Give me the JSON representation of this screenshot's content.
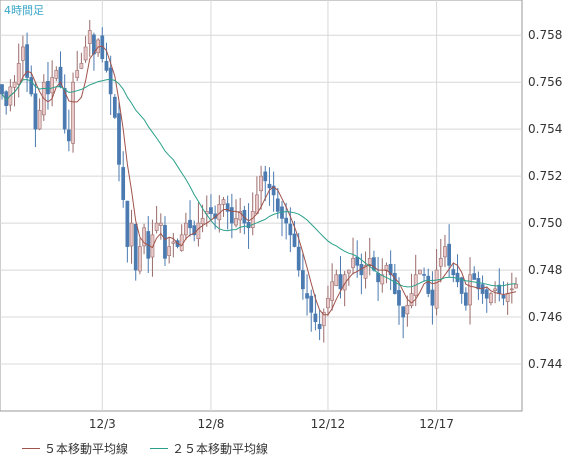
{
  "chart_data": {
    "type": "candlestick",
    "title": "4時間足",
    "ylim": [
      0.742,
      0.7595
    ],
    "y_ticks": [
      "0.758",
      "0.756",
      "0.754",
      "0.752",
      "0.750",
      "0.748",
      "0.746",
      "0.744"
    ],
    "y_tick_values": [
      0.758,
      0.756,
      0.754,
      0.752,
      0.75,
      0.748,
      0.746,
      0.744
    ],
    "x_ticks": [
      {
        "label": "12/3",
        "index": 24
      },
      {
        "label": "12/8",
        "index": 50
      },
      {
        "label": "12/12",
        "index": 78
      },
      {
        "label": "12/17",
        "index": 104
      }
    ],
    "up_color": "#e8c8c8",
    "down_color": "#4a7ab0",
    "grid": true,
    "legend_position": "bottom",
    "series": [
      {
        "name": "５本移動平均線",
        "color": "#a0524a"
      },
      {
        "name": "２５本移動平均線",
        "color": "#2aa08a"
      }
    ],
    "closes": [
      0.7555,
      0.755,
      0.7558,
      0.756,
      0.7568,
      0.7575,
      0.7562,
      0.7555,
      0.754,
      0.7548,
      0.756,
      0.7555,
      0.7562,
      0.7565,
      0.7558,
      0.754,
      0.7535,
      0.756,
      0.7565,
      0.7568,
      0.7575,
      0.7582,
      0.7572,
      0.7578,
      0.757,
      0.7565,
      0.7555,
      0.7545,
      0.7525,
      0.751,
      0.749,
      0.75,
      0.748,
      0.749,
      0.7498,
      0.7485,
      0.7495,
      0.75,
      0.75,
      0.7485,
      0.749,
      0.7492,
      0.749,
      0.7495,
      0.75,
      0.7498,
      0.7495,
      0.75,
      0.7502,
      0.7505,
      0.7504,
      0.7502,
      0.7508,
      0.751,
      0.7505,
      0.75,
      0.7502,
      0.7505,
      0.75,
      0.7498,
      0.7505,
      0.7512,
      0.752,
      0.7518,
      0.7515,
      0.7512,
      0.7505,
      0.7502,
      0.75,
      0.7495,
      0.749,
      0.748,
      0.7472,
      0.7468,
      0.7462,
      0.7458,
      0.7455,
      0.7462,
      0.7468,
      0.7475,
      0.7478,
      0.7472,
      0.7478,
      0.748,
      0.7485,
      0.7482,
      0.7478,
      0.7482,
      0.7485,
      0.748,
      0.7475,
      0.7478,
      0.7482,
      0.7478,
      0.747,
      0.7465,
      0.746,
      0.7465,
      0.747,
      0.7478,
      0.748,
      0.7478,
      0.747,
      0.7465,
      0.748,
      0.7485,
      0.749,
      0.7482,
      0.7478,
      0.7475,
      0.747,
      0.7465,
      0.7478,
      0.7476,
      0.7472,
      0.747,
      0.7468,
      0.747,
      0.7472,
      0.747,
      0.7468,
      0.747,
      0.7472,
      0.7474
    ]
  }
}
